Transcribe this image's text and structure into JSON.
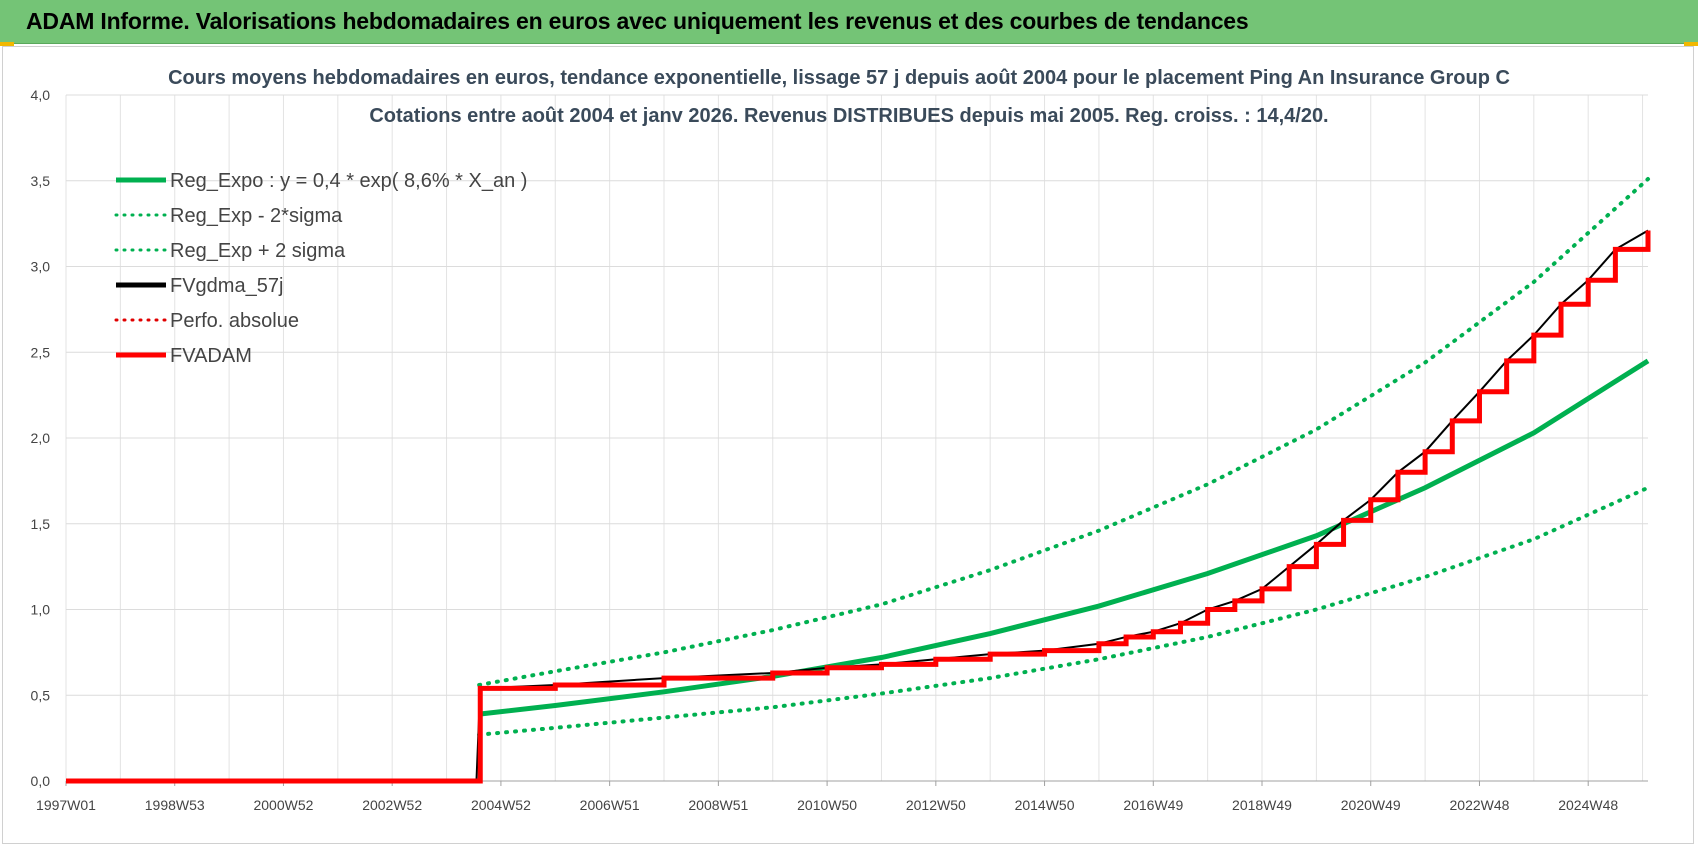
{
  "banner": {
    "title": "ADAM Informe. Valorisations hebdomadaires en euros avec uniquement les revenus et des courbes de tendances"
  },
  "chart_data": {
    "type": "line",
    "title": "Cours moyens hebdomadaires en euros, tendance exponentielle, lissage 57 j depuis août 2004 pour le placement Ping An Insurance Group C",
    "subtitle": "Cotations entre août 2004 et janv 2026. Revenus DISTRIBUES depuis mai 2005. Reg. croiss. : 14,4/20.",
    "xlabel": "",
    "ylabel": "",
    "x_tick_labels": [
      "1997W01",
      "1998W53",
      "2000W52",
      "2002W52",
      "2004W52",
      "2006W51",
      "2008W51",
      "2010W50",
      "2012W50",
      "2014W50",
      "2016W49",
      "2018W49",
      "2020W49",
      "2022W48",
      "2024W48"
    ],
    "x_range_years": [
      1997.0,
      2026.1
    ],
    "y_tick_labels": [
      "0,0",
      "0,5",
      "1,0",
      "1,5",
      "2,0",
      "2,5",
      "3,0",
      "3,5",
      "4,0"
    ],
    "ylim": [
      0,
      4
    ],
    "grid": true,
    "legend_position": "top-left",
    "series": [
      {
        "name": "Reg_Expo : y = 0,4 * exp( 8,6% *  X_an )",
        "color": "#00b050",
        "style": "solid",
        "x": [
          2004.6,
          2006,
          2008,
          2010,
          2012,
          2014,
          2016,
          2018,
          2020,
          2022,
          2024,
          2026.1
        ],
        "y": [
          0.39,
          0.44,
          0.52,
          0.61,
          0.72,
          0.86,
          1.02,
          1.21,
          1.43,
          1.71,
          2.03,
          2.45
        ]
      },
      {
        "name": "Reg_Exp - 2*sigma",
        "color": "#00b050",
        "style": "dotted",
        "x": [
          2004.6,
          2006,
          2008,
          2010,
          2012,
          2014,
          2016,
          2018,
          2020,
          2022,
          2024,
          2026.1
        ],
        "y": [
          0.27,
          0.31,
          0.37,
          0.43,
          0.51,
          0.6,
          0.71,
          0.84,
          1.0,
          1.19,
          1.41,
          1.71
        ]
      },
      {
        "name": "Reg_Exp + 2 sigma",
        "color": "#00b050",
        "style": "dotted",
        "x": [
          2004.6,
          2006,
          2008,
          2010,
          2012,
          2014,
          2016,
          2018,
          2020,
          2022,
          2024,
          2026.1
        ],
        "y": [
          0.56,
          0.64,
          0.75,
          0.88,
          1.03,
          1.23,
          1.46,
          1.73,
          2.05,
          2.44,
          2.91,
          3.51
        ]
      },
      {
        "name": "FVgdma_57j",
        "color": "#000000",
        "style": "solid",
        "x": [
          1997.0,
          2004.55,
          2004.62,
          2006,
          2008,
          2010,
          2011,
          2012,
          2013,
          2014,
          2015,
          2016,
          2016.5,
          2017,
          2017.5,
          2018,
          2018.5,
          2019,
          2019.5,
          2020,
          2020.5,
          2021,
          2021.5,
          2022,
          2022.5,
          2023,
          2023.5,
          2024,
          2024.5,
          2025,
          2025.5,
          2026.1
        ],
        "y": [
          0.0,
          0.0,
          0.54,
          0.56,
          0.6,
          0.63,
          0.66,
          0.68,
          0.71,
          0.74,
          0.76,
          0.8,
          0.84,
          0.87,
          0.92,
          1.0,
          1.05,
          1.12,
          1.25,
          1.38,
          1.52,
          1.64,
          1.8,
          1.92,
          2.1,
          2.27,
          2.45,
          2.6,
          2.78,
          2.92,
          3.1,
          3.21
        ]
      },
      {
        "name": "Perfo. absolue",
        "color": "#e00000",
        "style": "dotted",
        "x": [],
        "y": []
      },
      {
        "name": "FVADAM",
        "color": "#ff0000",
        "style": "solid",
        "x": [
          1997.0,
          2004.55,
          2004.62,
          2006,
          2008,
          2010,
          2011,
          2012,
          2013,
          2014,
          2015,
          2016,
          2016.5,
          2017,
          2017.5,
          2018,
          2018.5,
          2019,
          2019.5,
          2020,
          2020.5,
          2021,
          2021.5,
          2022,
          2022.5,
          2023,
          2023.5,
          2024,
          2024.5,
          2025,
          2025.5,
          2026.1
        ],
        "y": [
          0.0,
          0.0,
          0.54,
          0.56,
          0.6,
          0.63,
          0.66,
          0.68,
          0.71,
          0.74,
          0.76,
          0.8,
          0.84,
          0.87,
          0.92,
          1.0,
          1.05,
          1.12,
          1.25,
          1.38,
          1.52,
          1.64,
          1.8,
          1.92,
          2.1,
          2.27,
          2.45,
          2.6,
          2.78,
          2.92,
          3.1,
          3.21
        ]
      }
    ]
  }
}
